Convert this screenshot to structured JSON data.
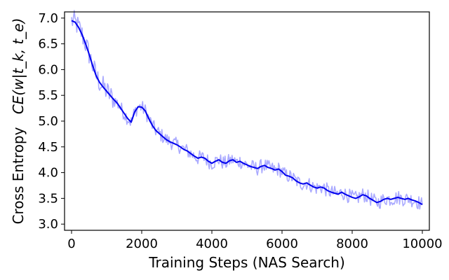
{
  "chart_data": {
    "type": "line",
    "xlabel": "Training Steps (NAS Search)",
    "ylabel_text": "Cross Entropy",
    "ylabel_math": "CE(w|t_k, t_e)",
    "xlim": [
      -200,
      10200
    ],
    "ylim": [
      2.88,
      7.12
    ],
    "xticks": [
      0,
      2000,
      4000,
      6000,
      8000,
      10000
    ],
    "yticks": [
      3.0,
      3.5,
      4.0,
      4.5,
      5.0,
      5.5,
      6.0,
      6.5,
      7.0
    ],
    "grid": false,
    "colors": {
      "raw": "#aaaaff",
      "smooth": "#0000ee",
      "axis": "#000000"
    },
    "series": [
      {
        "role": "smoothed",
        "x": [
          0,
          100,
          200,
          300,
          400,
          500,
          600,
          700,
          800,
          900,
          1000,
          1100,
          1200,
          1300,
          1400,
          1500,
          1600,
          1700,
          1800,
          1900,
          2000,
          2100,
          2200,
          2300,
          2400,
          2500,
          2600,
          2700,
          2800,
          2900,
          3000,
          3100,
          3200,
          3300,
          3400,
          3500,
          3600,
          3700,
          3800,
          3900,
          4000,
          4100,
          4200,
          4300,
          4400,
          4500,
          4600,
          4700,
          4800,
          4900,
          5000,
          5100,
          5200,
          5300,
          5400,
          5500,
          5600,
          5700,
          5800,
          5900,
          6000,
          6100,
          6200,
          6300,
          6400,
          6500,
          6600,
          6700,
          6800,
          6900,
          7000,
          7100,
          7200,
          7300,
          7400,
          7500,
          7600,
          7700,
          7800,
          7900,
          8000,
          8100,
          8200,
          8300,
          8400,
          8500,
          8600,
          8700,
          8800,
          8900,
          9000,
          9100,
          9200,
          9300,
          9400,
          9500,
          9600,
          9700,
          9800,
          9900,
          10000
        ],
        "y": [
          6.95,
          6.92,
          6.82,
          6.68,
          6.5,
          6.3,
          6.08,
          5.88,
          5.75,
          5.66,
          5.58,
          5.5,
          5.42,
          5.35,
          5.25,
          5.15,
          5.05,
          4.98,
          5.18,
          5.28,
          5.27,
          5.2,
          5.05,
          4.92,
          4.82,
          4.76,
          4.7,
          4.64,
          4.6,
          4.57,
          4.54,
          4.5,
          4.45,
          4.42,
          4.37,
          4.32,
          4.28,
          4.3,
          4.28,
          4.22,
          4.18,
          4.22,
          4.25,
          4.2,
          4.18,
          4.23,
          4.25,
          4.2,
          4.22,
          4.18,
          4.15,
          4.12,
          4.1,
          4.08,
          4.12,
          4.14,
          4.1,
          4.08,
          4.05,
          4.07,
          4.02,
          3.95,
          3.93,
          3.9,
          3.84,
          3.8,
          3.78,
          3.8,
          3.76,
          3.72,
          3.7,
          3.72,
          3.7,
          3.65,
          3.62,
          3.6,
          3.58,
          3.62,
          3.58,
          3.55,
          3.52,
          3.5,
          3.53,
          3.57,
          3.55,
          3.5,
          3.46,
          3.42,
          3.44,
          3.48,
          3.5,
          3.48,
          3.5,
          3.52,
          3.5,
          3.48,
          3.5,
          3.47,
          3.45,
          3.42,
          3.38
        ]
      }
    ]
  }
}
